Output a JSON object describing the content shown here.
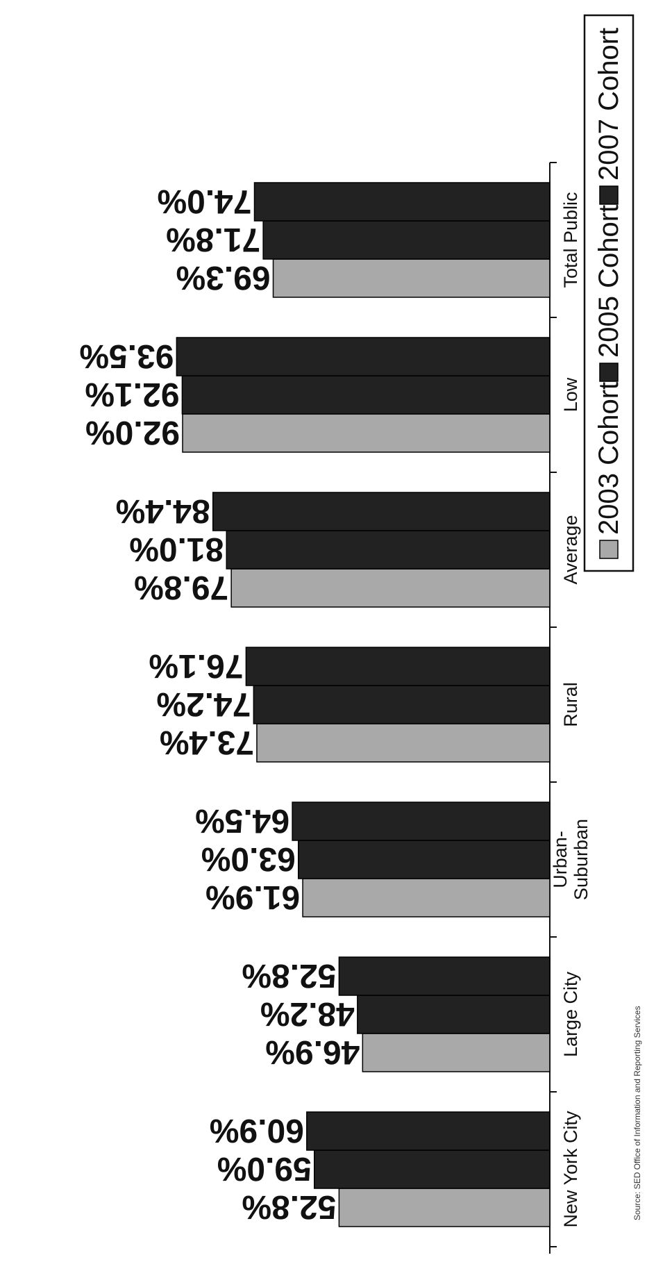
{
  "chart_data": {
    "type": "bar",
    "orientation": "horizontal",
    "categories": [
      "New York City",
      "Large City",
      "Urban-Suburban",
      "Rural",
      "Average",
      "Low",
      "Total Public"
    ],
    "series": [
      {
        "name": "2003 Cohort",
        "color": "#a9a9a9",
        "values": [
          52.8,
          46.9,
          61.9,
          73.4,
          79.8,
          92.0,
          69.3
        ]
      },
      {
        "name": "2005 Cohort",
        "color": "#222222",
        "values": [
          59.0,
          48.2,
          63.0,
          74.2,
          81.0,
          92.1,
          71.8
        ]
      },
      {
        "name": "2007 Cohort",
        "color": "#222222",
        "values": [
          60.9,
          52.8,
          64.5,
          76.1,
          84.4,
          93.5,
          74.0
        ]
      }
    ],
    "value_labels": [
      [
        "52.8%",
        "59.0%",
        "60.9%"
      ],
      [
        "46.9%",
        "48.2%",
        "52.8%"
      ],
      [
        "61.9%",
        "63.0%",
        "64.5%"
      ],
      [
        "73.4%",
        "74.2%",
        "76.1%"
      ],
      [
        "79.8%",
        "81.0%",
        "84.4%"
      ],
      [
        "92.0%",
        "92.1%",
        "93.5%"
      ],
      [
        "69.3%",
        "71.8%",
        "74.0%"
      ]
    ],
    "category_label_lines": [
      [
        "New York City"
      ],
      [
        "Large City"
      ],
      [
        "Urban-",
        "Suburban"
      ],
      [
        "Rural"
      ],
      [
        "Average"
      ],
      [
        "Low"
      ],
      [
        "Total Public"
      ]
    ],
    "xlim": [
      0,
      100
    ],
    "grid": false,
    "legend": "bottom",
    "source_note": "Source: SED Office of Information and Reporting Services"
  }
}
